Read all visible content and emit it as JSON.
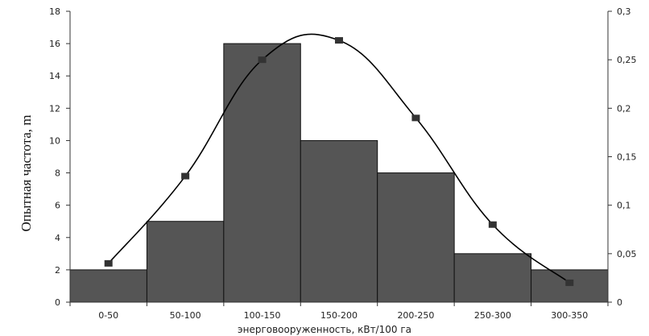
{
  "chart_data": {
    "type": "bar",
    "categories": [
      "0-50",
      "50-100",
      "100-150",
      "150-200",
      "200-250",
      "250-300",
      "300-350"
    ],
    "series": [
      {
        "axis": "left",
        "type": "bar",
        "values": [
          2,
          5,
          16,
          10,
          8,
          3,
          2
        ]
      },
      {
        "axis": "right",
        "type": "line",
        "values": [
          0.04,
          0.13,
          0.25,
          0.27,
          0.19,
          0.08,
          0.02
        ]
      }
    ],
    "xlabel": "энерговооруженность, кВт/100 га",
    "ylabel": "Опытная частота, m",
    "ylim": [
      0,
      18
    ],
    "y2lim": [
      0,
      0.3
    ],
    "yticks": [
      "0",
      "2",
      "4",
      "6",
      "8",
      "10",
      "12",
      "14",
      "16",
      "18"
    ],
    "y2ticks": [
      "0",
      "0,05",
      "0,1",
      "0,15",
      "0,2",
      "0,25",
      "0,3"
    ],
    "bar_color": "#555555",
    "line_color": "#000000",
    "marker_color": "#333333",
    "grid": false
  }
}
